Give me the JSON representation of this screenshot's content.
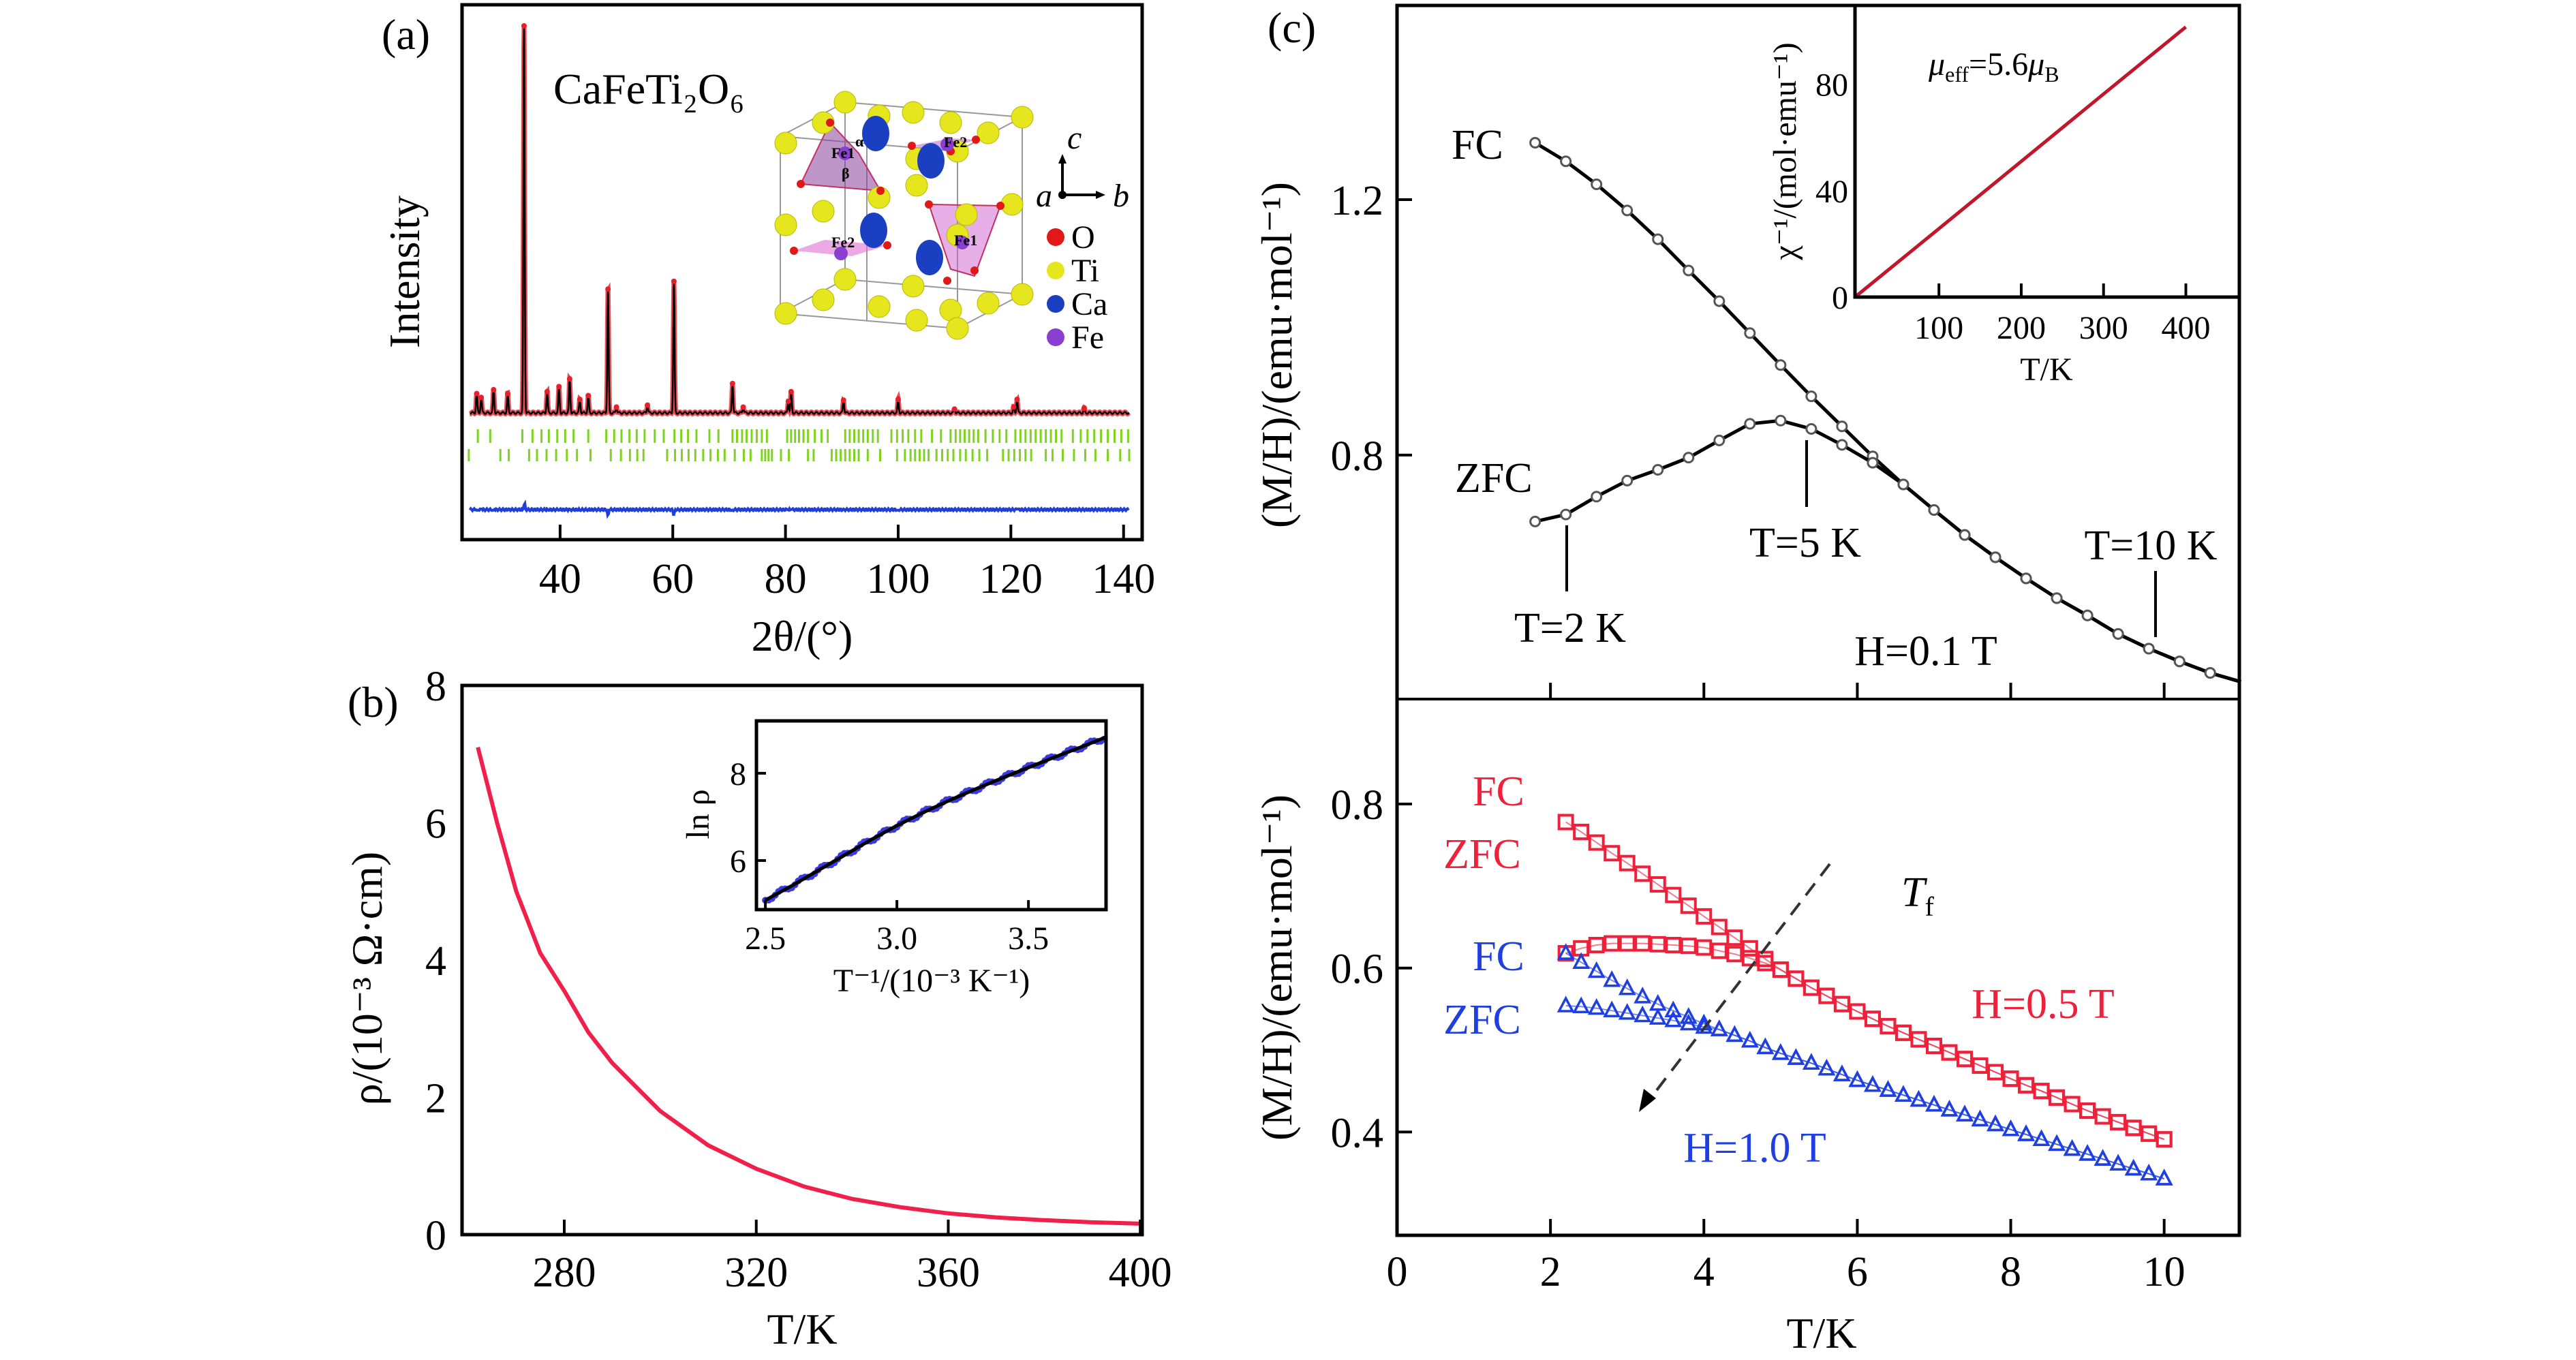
{
  "colors": {
    "observed": "#e8202a",
    "calculated": "#000000",
    "difference": "#1f3fd6",
    "bragg": "#7ed321",
    "rho": "#f0204a",
    "inset_b_data": "#3a3ae0",
    "inset_c_line": "#c0182a",
    "h05": "#f0203a",
    "h10": "#1f3fe0",
    "ti": "#e6e61e",
    "ca": "#1a3fc0",
    "fe": "#8a3fd0",
    "o": "#e01818"
  },
  "chart_data": [
    {
      "panel_label": "(a)",
      "type": "line",
      "title": "CaFeTi₂O₆",
      "xlabel": "2θ/(°)",
      "ylabel": "Intensity",
      "xlim": [
        22.6,
        143.3
      ],
      "xticks": [
        "40",
        "60",
        "80",
        "100",
        "120",
        "140"
      ],
      "xtick_values": [
        40,
        60,
        80,
        100,
        120,
        140
      ],
      "peaks": [
        [
          25.2,
          5
        ],
        [
          26.0,
          4
        ],
        [
          28.2,
          6
        ],
        [
          30.7,
          5
        ],
        [
          33.6,
          100
        ],
        [
          37.7,
          5.5
        ],
        [
          39.8,
          6.8
        ],
        [
          41.7,
          8.8
        ],
        [
          43.5,
          3.5
        ],
        [
          45.0,
          4.5
        ],
        [
          48.5,
          32
        ],
        [
          50.0,
          1.5
        ],
        [
          55.5,
          2
        ],
        [
          60.2,
          34
        ],
        [
          70.6,
          7.6
        ],
        [
          72.5,
          1.5
        ],
        [
          80.5,
          3
        ],
        [
          81.0,
          5.5
        ],
        [
          90.3,
          3.3
        ],
        [
          100.0,
          3.5
        ],
        [
          110.0,
          1
        ],
        [
          120.5,
          1.5
        ],
        [
          121.1,
          3.5
        ],
        [
          133.0,
          1.2
        ]
      ],
      "bragg_row1": [
        25.4,
        27.6,
        33.3,
        35.1,
        36.7,
        38.0,
        39.5,
        40.9,
        42.4,
        45.0,
        48.2,
        49.6,
        50.9,
        52.3,
        53.6,
        55.0,
        56.8,
        58.4,
        60.3,
        61.5,
        62.7,
        64.2,
        66.5,
        68.1,
        70.6,
        71.4,
        72.3,
        73.1,
        74.0,
        74.9,
        75.8,
        76.7,
        80.3,
        81.0,
        81.7,
        82.4,
        83.2,
        84.0,
        85.2,
        86.4,
        87.5,
        90.6,
        91.4,
        92.2,
        93.0,
        93.8,
        94.6,
        95.5,
        96.4,
        98.8,
        99.8,
        100.8,
        101.8,
        103.0,
        104.1,
        106.0,
        107.6,
        109.3,
        110.2,
        111.0,
        111.8,
        112.6,
        113.4,
        114.2,
        115.5,
        116.8,
        118.0,
        119.2,
        120.8,
        121.7,
        122.6,
        123.5,
        124.4,
        125.3,
        126.2,
        127.1,
        128.0,
        129.0,
        131.0,
        132.4,
        133.6,
        134.8,
        136.0,
        137.2,
        138.4,
        139.6,
        140.8
      ],
      "bragg_row2": [
        23.8,
        29.4,
        30.9,
        34.5,
        35.9,
        37.6,
        39.3,
        41.2,
        43.0,
        45.4,
        49.0,
        50.8,
        52.4,
        53.7,
        54.8,
        59.0,
        60.4,
        61.6,
        62.8,
        64.0,
        65.4,
        66.7,
        68.0,
        69.2,
        71.0,
        72.6,
        73.8,
        75.8,
        76.4,
        77.0,
        77.6,
        79.2,
        80.6,
        84.0,
        85.0,
        88.2,
        89.0,
        89.8,
        90.6,
        91.4,
        92.2,
        93.0,
        94.6,
        96.8,
        99.8,
        101.2,
        102.2,
        103.0,
        103.8,
        104.6,
        105.4,
        106.8,
        107.8,
        108.8,
        109.8,
        111.0,
        112.0,
        113.2,
        114.4,
        115.8,
        118.6,
        119.6,
        120.6,
        121.6,
        122.6,
        123.6,
        126.2,
        127.4,
        129.2,
        131.2,
        133.2,
        135.0,
        137.2,
        139.4,
        141.0
      ],
      "structure_inset": {
        "legend": [
          "O",
          "Ti",
          "Ca",
          "Fe"
        ],
        "site_labels": [
          "Fe1",
          "Fe2",
          "Fe2",
          "Fe1",
          "α",
          "β"
        ],
        "axes_labels": {
          "c": "c",
          "a": "a",
          "b": "b"
        }
      }
    },
    {
      "panel_label": "(b)",
      "type": "line",
      "xlabel": "T/K",
      "ylabel": "ρ/(10⁻³ Ω·cm)",
      "xlim": [
        258.7,
        400.4
      ],
      "ylim": [
        0,
        8
      ],
      "xticks": [
        "280",
        "320",
        "360",
        "400"
      ],
      "xtick_values": [
        280,
        320,
        360,
        400
      ],
      "yticks": [
        "0",
        "2",
        "4",
        "6",
        "8"
      ],
      "ytick_values": [
        0,
        2,
        4,
        6,
        8
      ],
      "x": [
        262,
        266,
        270,
        275,
        280,
        285,
        290,
        300,
        310,
        320,
        330,
        340,
        350,
        360,
        370,
        380,
        390,
        400
      ],
      "y": [
        7.1,
        6.0,
        5.0,
        4.1,
        3.55,
        2.95,
        2.5,
        1.8,
        1.3,
        0.96,
        0.7,
        0.52,
        0.4,
        0.31,
        0.25,
        0.21,
        0.18,
        0.16
      ],
      "inset": {
        "type": "scatter",
        "xlabel": "T⁻¹/(10⁻³ K⁻¹)",
        "ylabel": "ln ρ",
        "xlim": [
          2.466,
          3.795
        ],
        "ylim": [
          4.875,
          9.2
        ],
        "xticks": [
          "2.5",
          "3.0",
          "3.5"
        ],
        "xtick_values": [
          2.5,
          3.0,
          3.5
        ],
        "yticks": [
          "6",
          "8"
        ],
        "ytick_values": [
          6,
          8
        ],
        "x": [
          2.5,
          2.6,
          2.7,
          2.8,
          2.9,
          3.0,
          3.1,
          3.2,
          3.3,
          3.4,
          3.5,
          3.6,
          3.7,
          3.8
        ],
        "y": [
          5.09,
          5.42,
          5.77,
          6.12,
          6.47,
          6.8,
          7.1,
          7.38,
          7.64,
          7.89,
          8.13,
          8.37,
          8.6,
          8.84
        ]
      }
    },
    {
      "panel_label": "(c)",
      "type": "line",
      "ylabel": "(M/H)/(emu·mol⁻¹)",
      "xlim": [
        0,
        10.98
      ],
      "ylim": [
        0.418,
        1.504
      ],
      "yticks": [
        "0.8",
        "1.2"
      ],
      "ytick_values": [
        0.8,
        1.2
      ],
      "xtick_values": [
        2,
        4,
        6,
        8,
        10
      ],
      "series": [
        {
          "name": "FC",
          "x": [
            1.8,
            2.2,
            2.6,
            3.0,
            3.4,
            3.8,
            4.2,
            4.6,
            5.0,
            5.4,
            5.8,
            6.2,
            6.6,
            7.0,
            7.4,
            7.8,
            8.2,
            8.6,
            9.0,
            9.4,
            9.8,
            10.2,
            10.6,
            11.0
          ],
          "y": [
            1.289,
            1.26,
            1.224,
            1.183,
            1.138,
            1.089,
            1.041,
            0.991,
            0.941,
            0.892,
            0.845,
            0.798,
            0.754,
            0.714,
            0.675,
            0.64,
            0.607,
            0.576,
            0.549,
            0.52,
            0.497,
            0.477,
            0.459,
            0.445
          ]
        },
        {
          "name": "ZFC",
          "x": [
            1.8,
            2.2,
            2.6,
            3.0,
            3.4,
            3.8,
            4.2,
            4.6,
            5.0,
            5.4,
            5.8,
            6.2,
            6.6,
            7.0,
            7.4,
            7.8,
            8.2,
            8.6,
            9.0,
            9.4,
            9.8,
            10.2,
            10.6,
            11.0
          ],
          "y": [
            0.696,
            0.707,
            0.735,
            0.76,
            0.777,
            0.796,
            0.823,
            0.849,
            0.854,
            0.841,
            0.816,
            0.788,
            0.754,
            0.714,
            0.675,
            0.64,
            0.607,
            0.576,
            0.549,
            0.52,
            0.497,
            0.477,
            0.459,
            0.445
          ]
        }
      ],
      "annotations": {
        "fc": "FC",
        "zfc": "ZFC",
        "t2": "T=2 K",
        "t5": "T=5 K",
        "t10": "T=10 K",
        "field": "H=0.1 T"
      },
      "marker_temps": [
        2,
        5,
        10
      ],
      "inset": {
        "type": "line",
        "xlabel": "T/K",
        "ylabel": "χ⁻¹/(mol·emu⁻¹)",
        "xlim": [
          -2,
          465
        ],
        "ylim": [
          0,
          109.6
        ],
        "xticks": [
          "100",
          "200",
          "300",
          "400"
        ],
        "xtick_values": [
          100,
          200,
          300,
          400
        ],
        "yticks": [
          "0",
          "40",
          "80"
        ],
        "ytick_values": [
          0,
          40,
          80
        ],
        "x": [
          0,
          100,
          200,
          300,
          400
        ],
        "y": [
          0.5,
          25.7,
          51.0,
          76.3,
          101.5
        ],
        "annotation_parts": [
          "μ",
          "eff",
          "=5.6",
          "μ",
          "B"
        ]
      }
    },
    {
      "type": "line",
      "xlabel": "T/K",
      "ylabel": "(M/H)/(emu·mol⁻¹)",
      "xlim": [
        0,
        10.98
      ],
      "ylim": [
        0.274,
        0.928
      ],
      "xticks": [
        "0",
        "2",
        "4",
        "6",
        "8",
        "10"
      ],
      "xtick_values": [
        0,
        2,
        4,
        6,
        8,
        10
      ],
      "yticks": [
        "0.4",
        "0.6",
        "0.8"
      ],
      "ytick_values": [
        0.4,
        0.6,
        0.8
      ],
      "x": [
        2.2,
        2.4,
        2.6,
        2.8,
        3.0,
        3.2,
        3.4,
        3.6,
        3.8,
        4.0,
        4.2,
        4.4,
        4.6,
        4.8,
        5.0,
        5.2,
        5.4,
        5.6,
        5.8,
        6.0,
        6.2,
        6.4,
        6.6,
        6.8,
        7.0,
        7.2,
        7.4,
        7.6,
        7.8,
        8.0,
        8.2,
        8.4,
        8.6,
        8.8,
        9.0,
        9.2,
        9.4,
        9.6,
        9.8,
        10.0
      ],
      "series": [
        {
          "name": "FC",
          "field": "H=0.5 T",
          "marker": "square",
          "y": [
            0.778,
            0.766,
            0.753,
            0.74,
            0.728,
            0.715,
            0.702,
            0.689,
            0.676,
            0.663,
            0.65,
            0.637,
            0.624,
            0.611,
            0.598,
            0.587,
            0.576,
            0.566,
            0.556,
            0.547,
            0.538,
            0.529,
            0.521,
            0.513,
            0.505,
            0.497,
            0.489,
            0.481,
            0.473,
            0.465,
            0.457,
            0.45,
            0.442,
            0.434,
            0.426,
            0.419,
            0.412,
            0.405,
            0.398,
            0.391
          ]
        },
        {
          "name": "ZFC",
          "field": "H=0.5 T",
          "marker": "square",
          "y": [
            0.618,
            0.624,
            0.628,
            0.63,
            0.63,
            0.63,
            0.629,
            0.628,
            0.627,
            0.625,
            0.621,
            0.617,
            0.612,
            0.606,
            0.598,
            0.587,
            0.576,
            0.566,
            0.556,
            0.547,
            0.538,
            0.529,
            0.521,
            0.513,
            0.505,
            0.497,
            0.489,
            0.481,
            0.473,
            0.465,
            0.457,
            0.45,
            0.442,
            0.434,
            0.426,
            0.419,
            0.412,
            0.405,
            0.398,
            0.391
          ]
        },
        {
          "name": "FC",
          "field": "H=1.0 T",
          "marker": "triangle",
          "y": [
            0.618,
            0.607,
            0.596,
            0.585,
            0.575,
            0.565,
            0.556,
            0.548,
            0.54,
            0.532,
            0.525,
            0.518,
            0.511,
            0.503,
            0.496,
            0.49,
            0.484,
            0.477,
            0.47,
            0.463,
            0.457,
            0.451,
            0.445,
            0.439,
            0.433,
            0.427,
            0.421,
            0.415,
            0.409,
            0.403,
            0.397,
            0.391,
            0.385,
            0.379,
            0.373,
            0.367,
            0.361,
            0.355,
            0.349,
            0.343
          ]
        },
        {
          "name": "ZFC",
          "field": "H=1.0 T",
          "marker": "triangle",
          "y": [
            0.554,
            0.553,
            0.551,
            0.548,
            0.545,
            0.542,
            0.539,
            0.536,
            0.532,
            0.528,
            0.525,
            0.518,
            0.511,
            0.503,
            0.496,
            0.49,
            0.484,
            0.477,
            0.47,
            0.463,
            0.457,
            0.451,
            0.445,
            0.439,
            0.433,
            0.427,
            0.421,
            0.415,
            0.409,
            0.403,
            0.397,
            0.391,
            0.385,
            0.379,
            0.373,
            0.367,
            0.361,
            0.355,
            0.349,
            0.343
          ]
        }
      ],
      "annotations": {
        "fc_red": "FC",
        "zfc_red": "ZFC",
        "fc_blue": "FC",
        "zfc_blue": "ZFC",
        "field_05": "H=0.5 T",
        "field_10": "H=1.0 T",
        "tf_main": "T",
        "tf_sub": "f"
      }
    }
  ]
}
